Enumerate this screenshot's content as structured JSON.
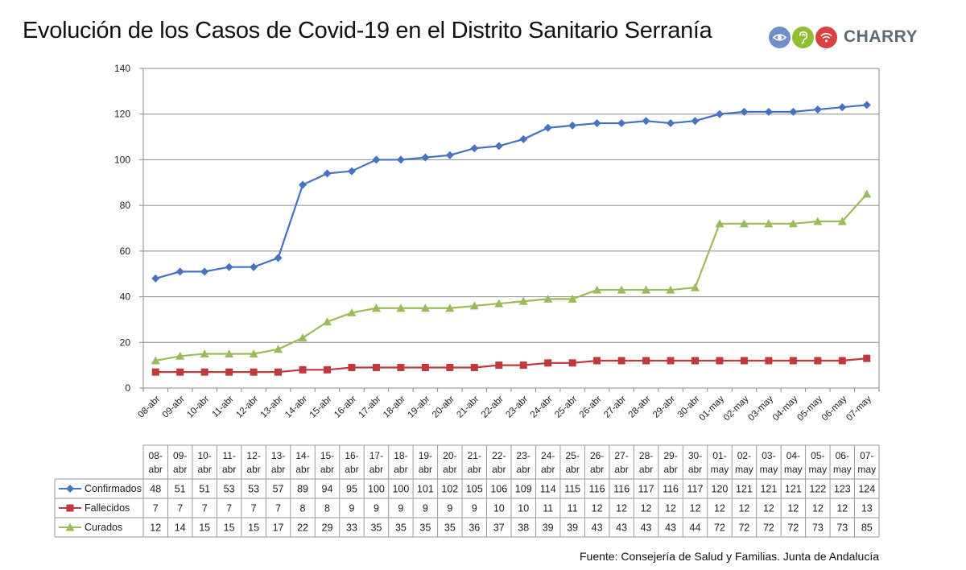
{
  "title": "Evolución de los Casos de Covid-19 en el Distrito Sanitario Serranía",
  "brand": {
    "name": "CHARRY",
    "icons": [
      "eye-icon",
      "ear-icon",
      "wifi-icon"
    ],
    "colors": [
      "#6f8fc9",
      "#8fbf2f",
      "#d9403f"
    ]
  },
  "source": "Fuente: Consejería de Salud y Familias. Junta de Andalucía",
  "chart_data": {
    "type": "line",
    "x": [
      "08-abr",
      "09-abr",
      "10-abr",
      "11-abr",
      "12-abr",
      "13-abr",
      "14-abr",
      "15-abr",
      "16-abr",
      "17-abr",
      "18-abr",
      "19-abr",
      "20-abr",
      "21-abr",
      "22-abr",
      "23-abr",
      "24-abr",
      "25-abr",
      "26-abr",
      "27-abr",
      "28-abr",
      "29-abr",
      "30-abr",
      "01-may",
      "02-may",
      "03-may",
      "04-may",
      "05-may",
      "06-may",
      "07-may"
    ],
    "table_headers": [
      [
        "08-",
        "abr"
      ],
      [
        "09-",
        "abr"
      ],
      [
        "10-",
        "abr"
      ],
      [
        "11-",
        "abr"
      ],
      [
        "12-",
        "abr"
      ],
      [
        "13-",
        "abr"
      ],
      [
        "14-",
        "abr"
      ],
      [
        "15-",
        "abr"
      ],
      [
        "16-",
        "abr"
      ],
      [
        "17-",
        "abr"
      ],
      [
        "18-",
        "abr"
      ],
      [
        "19-",
        "abr"
      ],
      [
        "20-",
        "abr"
      ],
      [
        "21-",
        "abr"
      ],
      [
        "22-",
        "abr"
      ],
      [
        "23-",
        "abr"
      ],
      [
        "24-",
        "abr"
      ],
      [
        "25-",
        "abr"
      ],
      [
        "26-",
        "abr"
      ],
      [
        "27-",
        "abr"
      ],
      [
        "28-",
        "abr"
      ],
      [
        "29-",
        "abr"
      ],
      [
        "30-",
        "abr"
      ],
      [
        "01-",
        "may"
      ],
      [
        "02-",
        "may"
      ],
      [
        "03-",
        "may"
      ],
      [
        "04-",
        "may"
      ],
      [
        "05-",
        "may"
      ],
      [
        "06-",
        "may"
      ],
      [
        "07-",
        "may"
      ]
    ],
    "series": [
      {
        "name": "Confirmados",
        "color": "#4472c4",
        "marker": "diamond",
        "values": [
          48,
          51,
          51,
          53,
          53,
          57,
          89,
          94,
          95,
          100,
          100,
          101,
          102,
          105,
          106,
          109,
          114,
          115,
          116,
          116,
          117,
          116,
          117,
          120,
          121,
          121,
          121,
          122,
          123,
          124
        ]
      },
      {
        "name": "Fallecidos",
        "color": "#c0393b",
        "marker": "square",
        "values": [
          7,
          7,
          7,
          7,
          7,
          7,
          8,
          8,
          9,
          9,
          9,
          9,
          9,
          9,
          10,
          10,
          11,
          11,
          12,
          12,
          12,
          12,
          12,
          12,
          12,
          12,
          12,
          12,
          12,
          13
        ]
      },
      {
        "name": "Curados",
        "color": "#9bbb59",
        "marker": "triangle",
        "values": [
          12,
          14,
          15,
          15,
          15,
          17,
          22,
          29,
          33,
          35,
          35,
          35,
          35,
          36,
          37,
          38,
          39,
          39,
          43,
          43,
          43,
          43,
          44,
          72,
          72,
          72,
          72,
          73,
          73,
          85
        ]
      }
    ],
    "y_ticks": [
      0,
      20,
      40,
      60,
      80,
      100,
      120,
      140
    ],
    "ylim": [
      0,
      140
    ],
    "grid": true,
    "legend": "data-table-below"
  }
}
